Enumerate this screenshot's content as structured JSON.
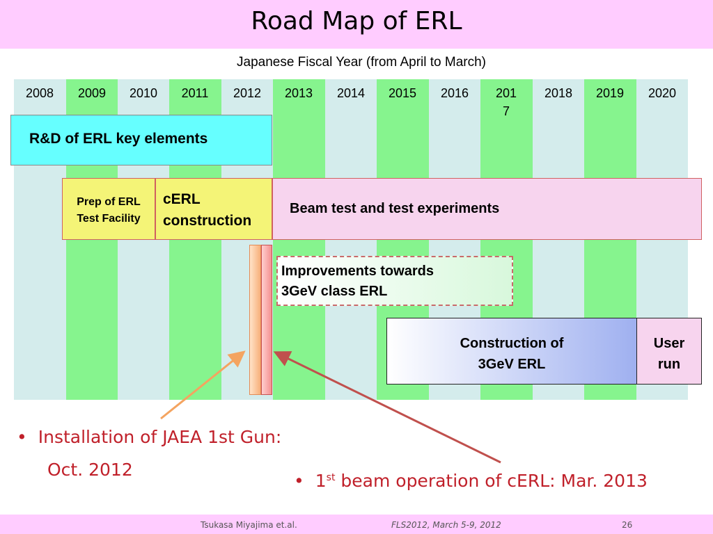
{
  "title": "Road Map of ERL",
  "subtitle": "Japanese Fiscal Year (from April to March)",
  "years": [
    "2008",
    "2009",
    "2010",
    "2011",
    "2012",
    "2013",
    "2014",
    "2015",
    "2016",
    "201\n7",
    "2018",
    "2019",
    "2020"
  ],
  "boxes": {
    "rd": "R&D of ERL key elements",
    "prep": "Prep of ERL\nTest Facility",
    "cerl": "cERL\nconstruction",
    "beam": "Beam test and test experiments",
    "improve": "Improvements towards\n3GeV class ERL",
    "construct": "Construction of\n3GeV ERL",
    "userrun": "User\nrun"
  },
  "bullets": {
    "gun_line1": "Installation of JAEA 1st Gun:",
    "gun_line2": "Oct. 2012",
    "beam_pre": "1",
    "beam_sup": "st",
    "beam_post": " beam operation of cERL: Mar. 2013"
  },
  "bullet_symbol": "•",
  "footer": {
    "author": "Tsukasa Miyajima et.al.",
    "conference": "FLS2012, March 5-9, 2012",
    "page": "26"
  },
  "colors": {
    "header": "#ffccff",
    "column_light": "#d4ecec",
    "column_green": "#86f48e",
    "bullet_text": "#c0202a"
  }
}
